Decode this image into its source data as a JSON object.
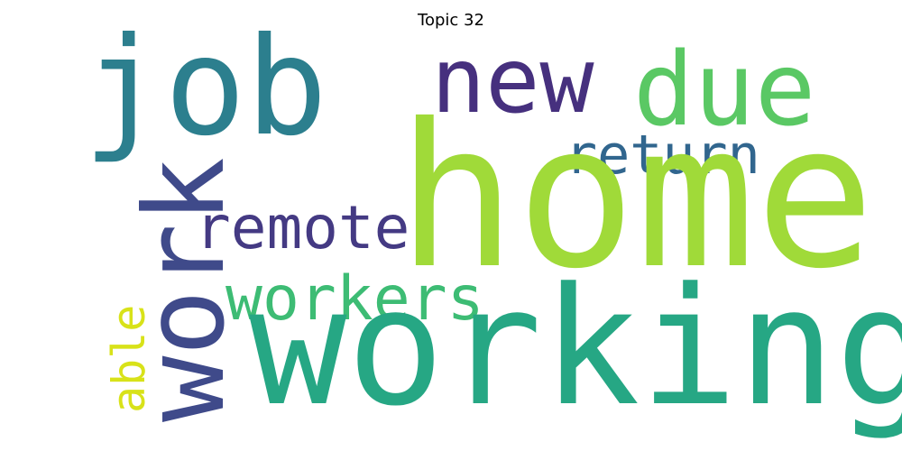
{
  "title": "Topic 32",
  "words": [
    {
      "id": "job",
      "text": "job",
      "color": "#2c7f8e"
    },
    {
      "id": "new",
      "text": "new",
      "color": "#46307e"
    },
    {
      "id": "due",
      "text": "due",
      "color": "#5ac864"
    },
    {
      "id": "return",
      "text": "return",
      "color": "#31668e"
    },
    {
      "id": "home",
      "text": "home",
      "color": "#a0da39"
    },
    {
      "id": "remote",
      "text": "remote",
      "color": "#443a83"
    },
    {
      "id": "workers",
      "text": "workers",
      "color": "#3dbc74"
    },
    {
      "id": "working",
      "text": "working",
      "color": "#26a784"
    },
    {
      "id": "work",
      "text": "work",
      "color": "#3f4a8a"
    },
    {
      "id": "able",
      "text": "able",
      "color": "#d8e219"
    }
  ]
}
